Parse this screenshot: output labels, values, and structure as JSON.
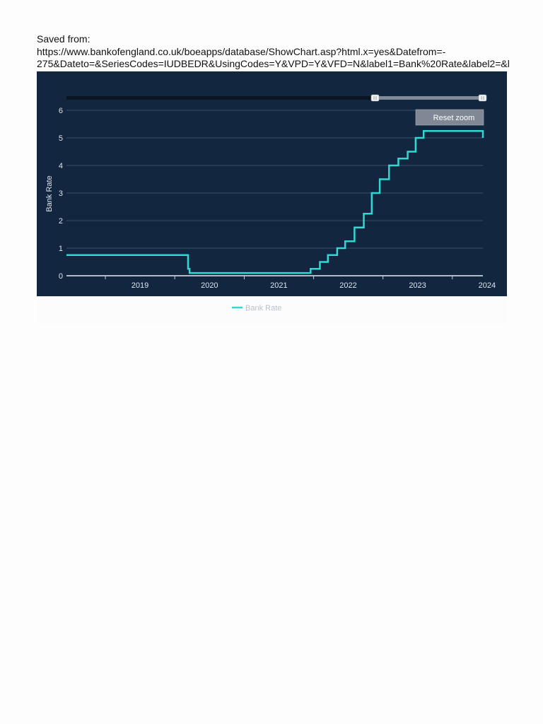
{
  "header": {
    "label": "Saved from:",
    "url_line1": "https://www.bankofengland.co.uk/boeapps/database/ShowChart.asp?html.x=yes&Datefrom=-",
    "url_line2": "275&Dateto=&SeriesCodes=IUDBEDR&UsingCodes=Y&VPD=Y&VFD=N&label1=Bank%20Rate&label2=&l"
  },
  "chart": {
    "reset_zoom_label": "Reset zoom",
    "legend_label": "Bank Rate",
    "background_color": "#12263f",
    "line_color": "#2fd8d2"
  },
  "chart_data": {
    "type": "line",
    "step": true,
    "title": "",
    "xlabel": "",
    "ylabel": "Bank Rate",
    "ylim": [
      0,
      6
    ],
    "yticks": [
      0,
      1,
      2,
      3,
      4,
      5,
      6
    ],
    "xlim": [
      "2018-06-10",
      "2024-06-10"
    ],
    "xticks": [
      "2019",
      "2020",
      "2021",
      "2022",
      "2023",
      "2024"
    ],
    "grid": true,
    "legend_position": "bottom",
    "series": [
      {
        "name": "Bank Rate",
        "points": [
          [
            "2018-06-10",
            0.75
          ],
          [
            "2020-03-11",
            0.25
          ],
          [
            "2020-03-19",
            0.1
          ],
          [
            "2021-12-16",
            0.25
          ],
          [
            "2022-02-03",
            0.5
          ],
          [
            "2022-03-17",
            0.75
          ],
          [
            "2022-05-05",
            1.0
          ],
          [
            "2022-06-16",
            1.25
          ],
          [
            "2022-08-04",
            1.75
          ],
          [
            "2022-09-22",
            2.25
          ],
          [
            "2022-11-03",
            3.0
          ],
          [
            "2022-12-15",
            3.5
          ],
          [
            "2023-02-02",
            4.0
          ],
          [
            "2023-03-23",
            4.25
          ],
          [
            "2023-05-11",
            4.5
          ],
          [
            "2023-06-22",
            5.0
          ],
          [
            "2023-08-03",
            5.25
          ],
          [
            "2024-08-01",
            5.0
          ],
          [
            "2024-06-10",
            5.0
          ]
        ]
      }
    ]
  }
}
